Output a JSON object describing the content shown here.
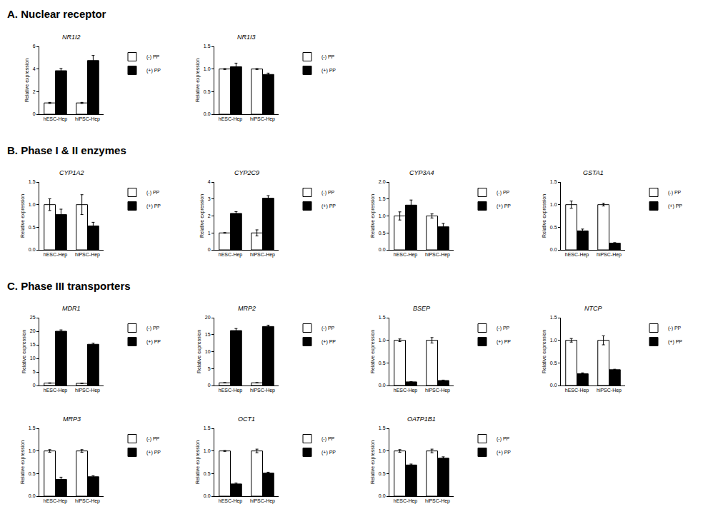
{
  "chart_data": [
    {
      "type": "bar",
      "section": "A. Nuclear receptor",
      "title": "NR1I2",
      "y_label": "Relative expression",
      "categories": [
        "hESC-Hep",
        "hiPSC-Hep"
      ],
      "series": [
        {
          "name": "(-) PP",
          "color": "#ffffff",
          "values": [
            1,
            1
          ],
          "errors": [
            0.05,
            0.05
          ]
        },
        {
          "name": "(+) PP",
          "color": "#000000",
          "values": [
            3.85,
            4.75
          ],
          "errors": [
            0.2,
            0.45
          ]
        }
      ],
      "ylim": [
        0,
        6
      ],
      "yticks": [
        0,
        2,
        4,
        6
      ],
      "grid": false,
      "legend": "right"
    },
    {
      "type": "bar",
      "section": "A. Nuclear receptor",
      "title": "NR1I3",
      "y_label": "Relative expression",
      "categories": [
        "hESC-Hep",
        "hiPSC-Hep"
      ],
      "series": [
        {
          "name": "(-) PP",
          "color": "#ffffff",
          "values": [
            1,
            1
          ],
          "errors": [
            0.01,
            0.01
          ]
        },
        {
          "name": "(+) PP",
          "color": "#000000",
          "values": [
            1.05,
            0.88
          ],
          "errors": [
            0.08,
            0.03
          ]
        }
      ],
      "ylim": [
        0,
        1.5
      ],
      "yticks": [
        {
          "value": 0,
          "label": "0.0"
        },
        {
          "value": 0.5,
          "label": "0.5"
        },
        {
          "value": 1,
          "label": "1.0"
        },
        {
          "value": 1.5,
          "label": "1.5"
        }
      ],
      "grid": false,
      "legend": "right"
    },
    {
      "type": "bar",
      "section": "B. Phase I & II enzymes",
      "title": "CYP1A2",
      "y_label": "Relative expression",
      "categories": [
        "hESC-Hep",
        "hiPSC-Hep"
      ],
      "series": [
        {
          "name": "(-) PP",
          "color": "#ffffff",
          "values": [
            1,
            1
          ],
          "errors": [
            0.13,
            0.22
          ]
        },
        {
          "name": "(+) PP",
          "color": "#000000",
          "values": [
            0.78,
            0.53
          ],
          "errors": [
            0.12,
            0.08
          ]
        }
      ],
      "ylim": [
        0,
        1.5
      ],
      "yticks": [
        {
          "value": 0,
          "label": "0.0"
        },
        {
          "value": 0.5,
          "label": "0.5"
        },
        {
          "value": 1,
          "label": "1.0"
        },
        {
          "value": 1.5,
          "label": "1.5"
        }
      ],
      "grid": false,
      "legend": "right"
    },
    {
      "type": "bar",
      "section": "B. Phase I & II enzymes",
      "title": "CYP2C9",
      "y_label": "Relative expression",
      "categories": [
        "hESC-Hep",
        "hiPSC-Hep"
      ],
      "series": [
        {
          "name": "(-) PP",
          "color": "#ffffff",
          "values": [
            1,
            1
          ],
          "errors": [
            0.02,
            0.18
          ]
        },
        {
          "name": "(+) PP",
          "color": "#000000",
          "values": [
            2.15,
            3.05
          ],
          "errors": [
            0.1,
            0.15
          ]
        }
      ],
      "ylim": [
        0,
        4
      ],
      "yticks": [
        0,
        1,
        2,
        3,
        4
      ],
      "grid": false,
      "legend": "right"
    },
    {
      "type": "bar",
      "section": "B. Phase I & II enzymes",
      "title": "CYP3A4",
      "y_label": "Relative expression",
      "categories": [
        "hESC-Hep",
        "hiPSC-Hep"
      ],
      "series": [
        {
          "name": "(-) PP",
          "color": "#ffffff",
          "values": [
            1,
            1
          ],
          "errors": [
            0.12,
            0.06
          ]
        },
        {
          "name": "(+) PP",
          "color": "#000000",
          "values": [
            1.32,
            0.68
          ],
          "errors": [
            0.15,
            0.1
          ]
        }
      ],
      "ylim": [
        0,
        2
      ],
      "yticks": [
        {
          "value": 0,
          "label": "0.0"
        },
        {
          "value": 0.5,
          "label": "0.5"
        },
        {
          "value": 1,
          "label": "1.0"
        },
        {
          "value": 1.5,
          "label": "1.5"
        },
        {
          "value": 2,
          "label": "2.0"
        }
      ],
      "grid": false,
      "legend": "right"
    },
    {
      "type": "bar",
      "section": "B. Phase I & II enzymes",
      "title": "GSTA1",
      "y_label": "Relative expression",
      "categories": [
        "hESC-Hep",
        "hiPSC-Hep"
      ],
      "series": [
        {
          "name": "(-) PP",
          "color": "#ffffff",
          "values": [
            1,
            1
          ],
          "errors": [
            0.08,
            0.03
          ]
        },
        {
          "name": "(+) PP",
          "color": "#000000",
          "values": [
            0.42,
            0.15
          ],
          "errors": [
            0.04,
            0.01
          ]
        }
      ],
      "ylim": [
        0,
        1.5
      ],
      "yticks": [
        {
          "value": 0,
          "label": "0.0"
        },
        {
          "value": 0.5,
          "label": "0.5"
        },
        {
          "value": 1,
          "label": "1.0"
        },
        {
          "value": 1.5,
          "label": "1.5"
        }
      ],
      "grid": false,
      "legend": "right"
    },
    {
      "type": "bar",
      "section": "C. Phase III transporters",
      "title": "MDR1",
      "y_label": "Relative expression",
      "categories": [
        "hESC-Hep",
        "hiPSC-Hep"
      ],
      "series": [
        {
          "name": "(-) PP",
          "color": "#ffffff",
          "values": [
            0.9,
            0.8
          ],
          "errors": [
            0.1,
            0.05
          ]
        },
        {
          "name": "(+) PP",
          "color": "#000000",
          "values": [
            20,
            15.2
          ],
          "errors": [
            0.5,
            0.4
          ]
        }
      ],
      "ylim": [
        0,
        25
      ],
      "yticks": [
        0,
        5,
        10,
        15,
        20,
        25
      ],
      "grid": false,
      "legend": "right"
    },
    {
      "type": "bar",
      "section": "C. Phase III transporters",
      "title": "MRP2",
      "y_label": "Relative expression",
      "categories": [
        "hESC-Hep",
        "hiPSC-Hep"
      ],
      "series": [
        {
          "name": "(-) PP",
          "color": "#ffffff",
          "values": [
            0.8,
            0.8
          ],
          "errors": [
            0.05,
            0.05
          ]
        },
        {
          "name": "(+) PP",
          "color": "#000000",
          "values": [
            16.2,
            17.4
          ],
          "errors": [
            0.6,
            0.4
          ]
        }
      ],
      "ylim": [
        0,
        20
      ],
      "yticks": [
        0,
        5,
        10,
        15,
        20
      ],
      "grid": false,
      "legend": "right"
    },
    {
      "type": "bar",
      "section": "C. Phase III transporters",
      "title": "BSEP",
      "y_label": "Relative expression",
      "categories": [
        "hESC-Hep",
        "hiPSC-Hep"
      ],
      "series": [
        {
          "name": "(-) PP",
          "color": "#ffffff",
          "values": [
            1,
            1
          ],
          "errors": [
            0.03,
            0.06
          ]
        },
        {
          "name": "(+) PP",
          "color": "#000000",
          "values": [
            0.08,
            0.11
          ],
          "errors": [
            0.005,
            0.01
          ]
        }
      ],
      "ylim": [
        0,
        1.5
      ],
      "yticks": [
        {
          "value": 0,
          "label": "0.0"
        },
        {
          "value": 0.5,
          "label": "0.5"
        },
        {
          "value": 1,
          "label": "1.0"
        },
        {
          "value": 1.5,
          "label": "1.5"
        }
      ],
      "grid": false,
      "legend": "right"
    },
    {
      "type": "bar",
      "section": "C. Phase III transporters",
      "title": "NTCP",
      "y_label": "Relative expression",
      "categories": [
        "hESC-Hep",
        "hiPSC-Hep"
      ],
      "series": [
        {
          "name": "(-) PP",
          "color": "#ffffff",
          "values": [
            1,
            1
          ],
          "errors": [
            0.04,
            0.1
          ]
        },
        {
          "name": "(+) PP",
          "color": "#000000",
          "values": [
            0.26,
            0.35
          ],
          "errors": [
            0.02,
            0.01
          ]
        }
      ],
      "ylim": [
        0,
        1.5
      ],
      "yticks": [
        {
          "value": 0,
          "label": "0.0"
        },
        {
          "value": 0.5,
          "label": "0.5"
        },
        {
          "value": 1,
          "label": "1.0"
        },
        {
          "value": 1.5,
          "label": "1.5"
        }
      ],
      "grid": false,
      "legend": "right"
    },
    {
      "type": "bar",
      "section": "C. Phase III transporters",
      "title": "MRP3",
      "y_label": "Relative expression",
      "categories": [
        "hESC-Hep",
        "hiPSC-Hep"
      ],
      "series": [
        {
          "name": "(-) PP",
          "color": "#ffffff",
          "values": [
            1,
            1
          ],
          "errors": [
            0.03,
            0.03
          ]
        },
        {
          "name": "(+) PP",
          "color": "#000000",
          "values": [
            0.37,
            0.43
          ],
          "errors": [
            0.05,
            0.02
          ]
        }
      ],
      "ylim": [
        0,
        1.5
      ],
      "yticks": [
        {
          "value": 0,
          "label": "0.0"
        },
        {
          "value": 0.5,
          "label": "0.5"
        },
        {
          "value": 1,
          "label": "1.0"
        },
        {
          "value": 1.5,
          "label": "1.5"
        }
      ],
      "grid": false,
      "legend": "right"
    },
    {
      "type": "bar",
      "section": "C. Phase III transporters",
      "title": "OCT1",
      "y_label": "Relative expression",
      "categories": [
        "hESC-Hep",
        "hiPSC-Hep"
      ],
      "series": [
        {
          "name": "(-) PP",
          "color": "#ffffff",
          "values": [
            1,
            1
          ],
          "errors": [
            0.01,
            0.04
          ]
        },
        {
          "name": "(+) PP",
          "color": "#000000",
          "values": [
            0.27,
            0.51
          ],
          "errors": [
            0.02,
            0.02
          ]
        }
      ],
      "ylim": [
        0,
        1.5
      ],
      "yticks": [
        {
          "value": 0,
          "label": "0.0"
        },
        {
          "value": 0.5,
          "label": "0.5"
        },
        {
          "value": 1,
          "label": "1.0"
        },
        {
          "value": 1.5,
          "label": "1.5"
        }
      ],
      "grid": false,
      "legend": "right"
    },
    {
      "type": "bar",
      "section": "C. Phase III transporters",
      "title": "OATP1B1",
      "y_label": "Relative expression",
      "categories": [
        "hESC-Hep",
        "hiPSC-Hep"
      ],
      "series": [
        {
          "name": "(-) PP",
          "color": "#ffffff",
          "values": [
            1,
            1
          ],
          "errors": [
            0.03,
            0.04
          ]
        },
        {
          "name": "(+) PP",
          "color": "#000000",
          "values": [
            0.69,
            0.84
          ],
          "errors": [
            0.02,
            0.03
          ]
        }
      ],
      "ylim": [
        0,
        1.5
      ],
      "yticks": [
        {
          "value": 0,
          "label": "0.0"
        },
        {
          "value": 0.5,
          "label": "0.5"
        },
        {
          "value": 1,
          "label": "1.0"
        },
        {
          "value": 1.5,
          "label": "1.5"
        }
      ],
      "grid": false,
      "legend": "right"
    }
  ]
}
